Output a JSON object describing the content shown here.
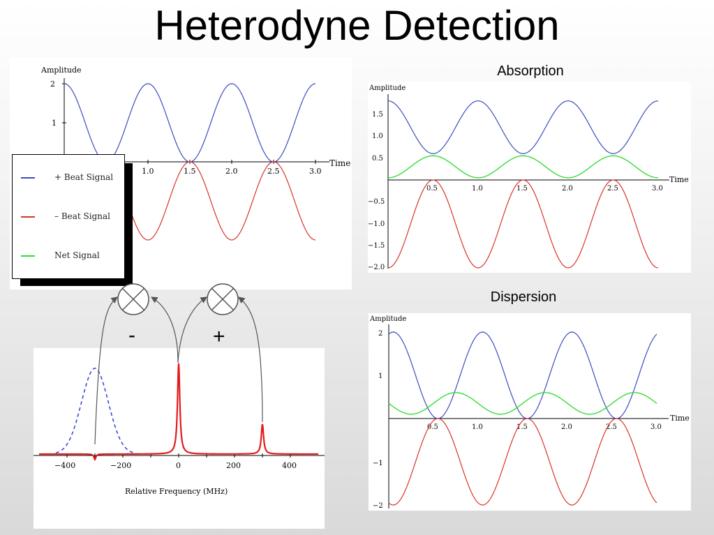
{
  "title": "Heterodyne Detection",
  "colors": {
    "plus_beat": "#3b4cc0",
    "minus_beat": "#d9322b",
    "net": "#33dd33",
    "spectrum": "#e31a1c",
    "spectrum_dashed": "#2f3fd6"
  },
  "plots": {
    "beat": {
      "ylabel": "Amplitude",
      "xlabel": "Time",
      "yticks": [
        "2",
        "1"
      ],
      "xticks": [
        "1.0",
        "1.5",
        "2.0",
        "2.5",
        "3.0"
      ]
    },
    "absorption": {
      "caption": "Absorption",
      "ylabel": "Amplitude",
      "xlabel": "Time",
      "yticks": [
        "1.5",
        "1.0",
        "0.5",
        "−0.5",
        "−1.0",
        "−1.5",
        "−2.0"
      ],
      "xticks": [
        "0.5",
        "1.0",
        "1.5",
        "2.0",
        "2.5",
        "3.0"
      ]
    },
    "dispersion": {
      "caption": "Dispersion",
      "ylabel": "Amplitude",
      "xlabel": "Time",
      "yticks": [
        "2",
        "1",
        "−1",
        "−2"
      ],
      "xticks": [
        "0.5",
        "1.0",
        "1.5",
        "2.0",
        "2.5",
        "3.0"
      ]
    },
    "spectrum": {
      "xlabel": "Relative Frequency (MHz)",
      "xticks": [
        "−400",
        "−200",
        "0",
        "200",
        "400"
      ]
    }
  },
  "legend": {
    "items": [
      {
        "label": "+ Beat Signal",
        "color": "#3b4cc0"
      },
      {
        "label": "– Beat Signal",
        "color": "#d9322b"
      },
      {
        "label": "Net Signal",
        "color": "#33dd33"
      }
    ]
  },
  "mixer": {
    "minus_label": "-",
    "plus_label": "+"
  },
  "chart_data": [
    {
      "type": "line",
      "title": "",
      "xlabel": "Time",
      "ylabel": "Amplitude",
      "xlim": [
        0,
        3.0
      ],
      "ylim": [
        -2,
        2
      ],
      "series": [
        {
          "name": "+ Beat Signal",
          "function": "1+cos(2*pi*t)"
        },
        {
          "name": "– Beat Signal",
          "function": "-(1+cos(2*pi*t))"
        }
      ]
    },
    {
      "type": "line",
      "title": "Absorption",
      "xlabel": "Time",
      "ylabel": "Amplitude",
      "xlim": [
        0,
        3.0
      ],
      "ylim": [
        -2.0,
        1.8
      ],
      "series": [
        {
          "name": "+ Beat Signal",
          "x": [
            0,
            0.5,
            1.0,
            1.5,
            2.0,
            2.5,
            3.0
          ],
          "y": [
            1.8,
            0.6,
            1.8,
            0.6,
            1.8,
            0.6,
            1.8
          ]
        },
        {
          "name": "– Beat Signal",
          "x": [
            0,
            0.5,
            1.0,
            1.5,
            2.0,
            2.5,
            3.0
          ],
          "y": [
            -2.0,
            0,
            -2.0,
            0,
            -2.0,
            0,
            -2.0
          ]
        },
        {
          "name": "Net Signal",
          "x": [
            0,
            0.5,
            1.0,
            1.5,
            2.0,
            2.5,
            3.0
          ],
          "y": [
            0.05,
            0.55,
            0.05,
            0.55,
            0.05,
            0.55,
            0.05
          ]
        }
      ]
    },
    {
      "type": "line",
      "title": "Dispersion",
      "xlabel": "Time",
      "ylabel": "Amplitude",
      "xlim": [
        0,
        3.0
      ],
      "ylim": [
        -2,
        2
      ],
      "series": [
        {
          "name": "+ Beat Signal",
          "x": [
            0.05,
            0.55,
            1.05,
            1.55,
            2.05,
            2.55,
            3.0
          ],
          "y": [
            2,
            0,
            2,
            0,
            2,
            0,
            1.85
          ]
        },
        {
          "name": "– Beat Signal",
          "x": [
            0.05,
            0.55,
            1.05,
            1.55,
            2.05,
            2.55,
            3.0
          ],
          "y": [
            -2,
            0,
            -2,
            0,
            -2,
            0,
            -2
          ]
        },
        {
          "name": "Net Signal",
          "x": [
            0,
            0.25,
            0.75,
            1.25,
            1.75,
            2.25,
            2.75,
            3.0
          ],
          "y": [
            0.35,
            0.1,
            0.6,
            0.1,
            0.6,
            0.1,
            0.6,
            0.35
          ]
        }
      ]
    },
    {
      "type": "line",
      "title": "",
      "xlabel": "Relative Frequency (MHz)",
      "ylabel": "",
      "xlim": [
        -500,
        500
      ],
      "series": [
        {
          "style": "dashed",
          "x": [
            -400,
            -300,
            -200
          ],
          "y": [
            0.05,
            0.95,
            0.05
          ]
        },
        {
          "style": "solid",
          "peaks": [
            {
              "x": -300,
              "y": -0.05
            },
            {
              "x": 0,
              "y": 1.0
            },
            {
              "x": 300,
              "y": 0.33
            }
          ]
        }
      ]
    }
  ]
}
